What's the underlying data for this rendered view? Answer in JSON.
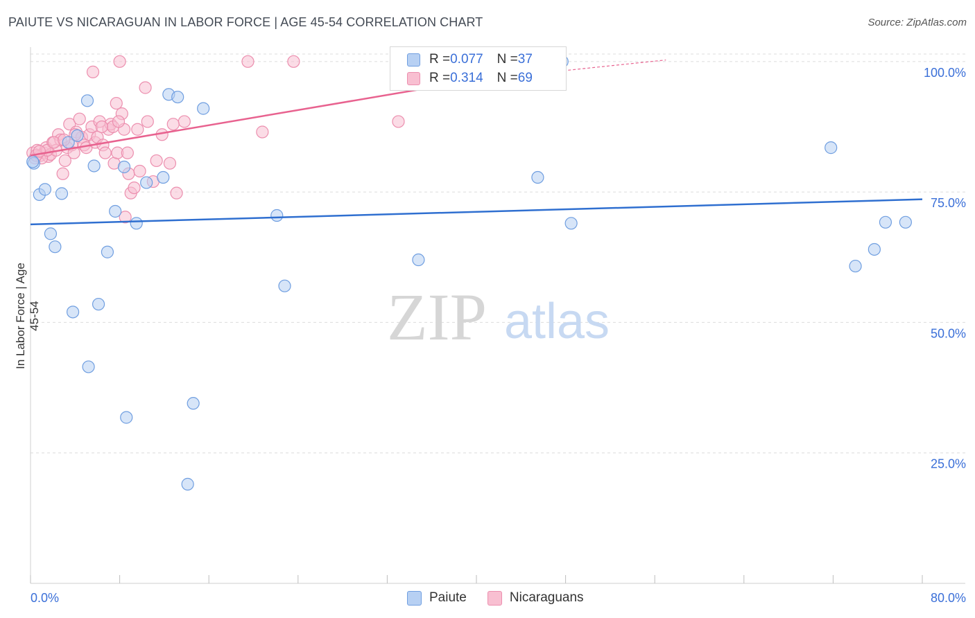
{
  "title": "PAIUTE VS NICARAGUAN IN LABOR FORCE | AGE 45-54 CORRELATION CHART",
  "source": "Source: ZipAtlas.com",
  "watermark": {
    "zip": "ZIP",
    "atlas": "atlas"
  },
  "legend_top": {
    "rows": [
      {
        "r_label": "R = ",
        "r_value": "0.077",
        "n_label": "N = ",
        "n_value": "37"
      },
      {
        "r_label": "R = ",
        "r_value": "0.314",
        "n_label": "N = ",
        "n_value": "69"
      }
    ]
  },
  "colors": {
    "paiute_fill": "#b7d0f3",
    "paiute_stroke": "#6f9ee0",
    "paiute_line": "#2f6fd0",
    "nicaraguan_fill": "#f8bfd1",
    "nicaraguan_stroke": "#ec8eae",
    "nicaraguan_line": "#e8628f",
    "tick_label": "#3a6fd8",
    "grid": "#dcdcdc"
  },
  "chart_data": {
    "type": "scatter",
    "title": "PAIUTE VS NICARAGUAN IN LABOR FORCE | AGE 45-54 CORRELATION CHART",
    "xlabel": "",
    "ylabel": "In Labor Force | Age 45-54",
    "xlim": [
      0,
      80
    ],
    "ylim": [
      0,
      102.5
    ],
    "x_tick_labels": [
      "0.0%",
      "80.0%"
    ],
    "y_ticks": [
      25,
      50,
      75,
      100
    ],
    "y_tick_labels": [
      "25.0%",
      "50.0%",
      "75.0%",
      "100.0%"
    ],
    "series": [
      {
        "name": "Paiute",
        "R": 0.077,
        "N": 37,
        "trend": {
          "x": [
            0,
            80
          ],
          "y": [
            68.8,
            73.6
          ]
        },
        "points": [
          [
            0.3,
            80.5
          ],
          [
            0.8,
            74.5
          ],
          [
            1.3,
            75.5
          ],
          [
            1.8,
            67.0
          ],
          [
            2.2,
            64.5
          ],
          [
            2.8,
            74.7
          ],
          [
            3.4,
            84.5
          ],
          [
            3.8,
            52.0
          ],
          [
            4.2,
            85.8
          ],
          [
            5.1,
            92.5
          ],
          [
            5.2,
            41.5
          ],
          [
            5.7,
            80.0
          ],
          [
            6.1,
            53.5
          ],
          [
            6.9,
            63.5
          ],
          [
            7.6,
            71.3
          ],
          [
            8.4,
            79.8
          ],
          [
            8.6,
            31.8
          ],
          [
            9.5,
            69.0
          ],
          [
            10.4,
            76.8
          ],
          [
            11.9,
            77.8
          ],
          [
            12.4,
            93.7
          ],
          [
            13.2,
            93.2
          ],
          [
            14.1,
            19.0
          ],
          [
            14.6,
            34.5
          ],
          [
            15.5,
            91.0
          ],
          [
            22.1,
            70.5
          ],
          [
            22.8,
            57.0
          ],
          [
            34.8,
            62.0
          ],
          [
            45.5,
            77.8
          ],
          [
            47.7,
            100.0
          ],
          [
            48.5,
            69.0
          ],
          [
            71.8,
            83.5
          ],
          [
            74.0,
            60.8
          ],
          [
            75.7,
            64.0
          ],
          [
            76.7,
            69.2
          ],
          [
            78.5,
            69.2
          ],
          [
            0.2,
            80.8
          ]
        ]
      },
      {
        "name": "Nicaraguans",
        "R": 0.314,
        "N": 69,
        "trend": {
          "x": [
            0,
            40
          ],
          "y": [
            82.0,
            96.5
          ]
        },
        "trend_dashed": {
          "x": [
            40,
            57
          ],
          "y": [
            96.5,
            100.3
          ]
        },
        "points": [
          [
            0.2,
            82.5
          ],
          [
            0.4,
            81.5
          ],
          [
            0.6,
            83.0
          ],
          [
            0.9,
            82.0
          ],
          [
            1.2,
            82.5
          ],
          [
            1.4,
            83.5
          ],
          [
            1.6,
            81.8
          ],
          [
            1.8,
            82.2
          ],
          [
            2.0,
            84.5
          ],
          [
            2.3,
            83.0
          ],
          [
            2.5,
            86.0
          ],
          [
            2.7,
            85.0
          ],
          [
            2.9,
            78.5
          ],
          [
            3.1,
            81.0
          ],
          [
            3.3,
            83.5
          ],
          [
            3.5,
            88.0
          ],
          [
            3.7,
            84.0
          ],
          [
            3.9,
            82.5
          ],
          [
            4.1,
            86.5
          ],
          [
            4.4,
            89.0
          ],
          [
            4.6,
            85.5
          ],
          [
            4.8,
            84.0
          ],
          [
            5.0,
            83.5
          ],
          [
            5.3,
            86.0
          ],
          [
            5.5,
            87.5
          ],
          [
            5.8,
            84.5
          ],
          [
            6.0,
            85.5
          ],
          [
            6.2,
            88.5
          ],
          [
            6.5,
            84.0
          ],
          [
            6.7,
            82.5
          ],
          [
            7.0,
            87.0
          ],
          [
            7.2,
            88.0
          ],
          [
            7.4,
            87.5
          ],
          [
            7.5,
            80.5
          ],
          [
            7.7,
            92.0
          ],
          [
            7.8,
            82.5
          ],
          [
            8.0,
            100.0
          ],
          [
            8.2,
            90.0
          ],
          [
            8.4,
            87.0
          ],
          [
            8.5,
            70.2
          ],
          [
            8.7,
            82.5
          ],
          [
            8.8,
            78.5
          ],
          [
            9.0,
            74.8
          ],
          [
            9.3,
            75.8
          ],
          [
            9.6,
            87.0
          ],
          [
            10.3,
            95.0
          ],
          [
            10.5,
            88.5
          ],
          [
            11.3,
            81.0
          ],
          [
            11.8,
            86.0
          ],
          [
            12.5,
            80.5
          ],
          [
            13.1,
            74.8
          ],
          [
            13.8,
            88.5
          ],
          [
            19.5,
            100.0
          ],
          [
            20.8,
            86.5
          ],
          [
            23.6,
            100.0
          ],
          [
            33.0,
            88.5
          ],
          [
            5.6,
            98.0
          ],
          [
            12.8,
            88.0
          ],
          [
            1.0,
            81.5
          ],
          [
            1.5,
            83.0
          ],
          [
            2.1,
            84.5
          ],
          [
            0.5,
            82.0
          ],
          [
            3.0,
            85.0
          ],
          [
            4.0,
            86.0
          ],
          [
            6.4,
            87.5
          ],
          [
            7.9,
            88.5
          ],
          [
            9.8,
            79.0
          ],
          [
            11.0,
            77.0
          ],
          [
            0.8,
            82.8
          ]
        ]
      }
    ]
  },
  "bottom_legend": [
    {
      "label": "Paiute"
    },
    {
      "label": "Nicaraguans"
    }
  ]
}
